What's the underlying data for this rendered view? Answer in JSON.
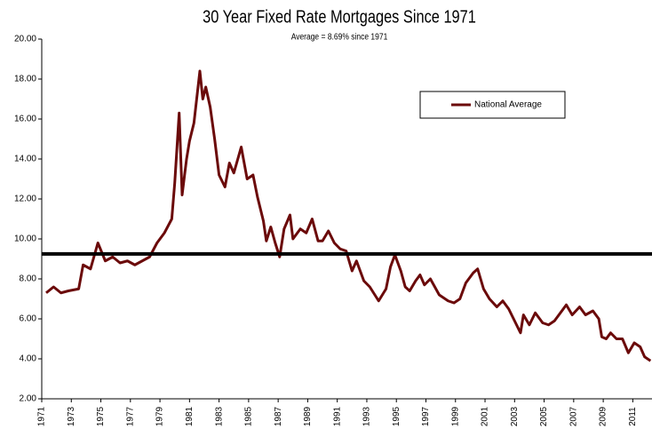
{
  "chart_data": {
    "type": "line",
    "title": "30 Year Fixed Rate Mortgages Since 1971",
    "subtitle": "Average = 8.69% since 1971",
    "x": [
      1971.3,
      1971.8,
      1972.3,
      1972.8,
      1973.5,
      1973.8,
      1974.3,
      1974.8,
      1975.3,
      1975.8,
      1976.3,
      1976.8,
      1977.3,
      1977.8,
      1978.3,
      1978.8,
      1979.3,
      1979.8,
      1980.0,
      1980.3,
      1980.5,
      1980.8,
      1981.0,
      1981.3,
      1981.7,
      1981.9,
      1982.1,
      1982.4,
      1982.7,
      1983.0,
      1983.4,
      1983.7,
      1984.0,
      1984.5,
      1984.9,
      1985.3,
      1985.6,
      1986.0,
      1986.2,
      1986.5,
      1986.8,
      1987.1,
      1987.4,
      1987.8,
      1988.0,
      1988.5,
      1988.9,
      1989.3,
      1989.7,
      1990.0,
      1990.4,
      1990.8,
      1991.2,
      1991.6,
      1992.0,
      1992.3,
      1992.8,
      1993.2,
      1993.8,
      1994.3,
      1994.6,
      1994.9,
      1995.3,
      1995.6,
      1995.9,
      1996.3,
      1996.6,
      1996.9,
      1997.3,
      1997.9,
      1998.5,
      1998.9,
      1999.3,
      1999.7,
      2000.2,
      2000.5,
      2000.9,
      2001.3,
      2001.8,
      2002.2,
      2002.6,
      2003.0,
      2003.4,
      2003.6,
      2004.0,
      2004.4,
      2004.9,
      2005.3,
      2005.7,
      2006.0,
      2006.5,
      2006.9,
      2007.4,
      2007.8,
      2008.3,
      2008.7,
      2008.9,
      2009.2,
      2009.5,
      2009.9,
      2010.3,
      2010.7,
      2011.1,
      2011.5,
      2011.8,
      2012.2
    ],
    "series": [
      {
        "name": "National Average",
        "color": "#6b0a0a",
        "values": [
          7.3,
          7.6,
          7.3,
          7.4,
          7.5,
          8.7,
          8.5,
          9.8,
          8.9,
          9.1,
          8.8,
          8.9,
          8.7,
          8.9,
          9.1,
          9.8,
          10.3,
          11.0,
          12.8,
          16.3,
          12.2,
          14.0,
          14.9,
          15.8,
          18.4,
          17.0,
          17.6,
          16.6,
          15.0,
          13.2,
          12.6,
          13.8,
          13.3,
          14.6,
          13.0,
          13.2,
          12.1,
          10.9,
          9.9,
          10.6,
          9.8,
          9.1,
          10.5,
          11.2,
          10.0,
          10.5,
          10.3,
          11.0,
          9.9,
          9.9,
          10.4,
          9.8,
          9.5,
          9.4,
          8.4,
          8.9,
          7.9,
          7.6,
          6.9,
          7.5,
          8.6,
          9.2,
          8.4,
          7.6,
          7.4,
          7.9,
          8.2,
          7.7,
          8.0,
          7.2,
          6.9,
          6.8,
          7.0,
          7.8,
          8.3,
          8.5,
          7.5,
          7.0,
          6.6,
          6.9,
          6.5,
          5.9,
          5.3,
          6.2,
          5.7,
          6.3,
          5.8,
          5.7,
          5.9,
          6.2,
          6.7,
          6.2,
          6.6,
          6.2,
          6.4,
          6.0,
          5.1,
          5.0,
          5.3,
          5.0,
          5.0,
          4.3,
          4.8,
          4.6,
          4.1,
          3.9
        ]
      }
    ],
    "reference_line": 9.25,
    "xlim": [
      1971,
      2012.3
    ],
    "xticks": [
      1971,
      1973,
      1975,
      1977,
      1979,
      1981,
      1983,
      1985,
      1987,
      1989,
      1991,
      1993,
      1995,
      1997,
      1999,
      2001,
      2003,
      2005,
      2007,
      2009,
      2011
    ],
    "ylim": [
      2,
      20
    ],
    "yticks": [
      {
        "value": 2,
        "label": "2.00"
      },
      {
        "value": 4,
        "label": "4.00"
      },
      {
        "value": 6,
        "label": "6.00"
      },
      {
        "value": 8,
        "label": "8.00"
      },
      {
        "value": 10,
        "label": "10.00"
      },
      {
        "value": 12,
        "label": "12.00"
      },
      {
        "value": 14,
        "label": "14.00"
      },
      {
        "value": 16,
        "label": "16.00"
      },
      {
        "value": 18,
        "label": "18.00"
      },
      {
        "value": 20,
        "label": "20.00"
      }
    ],
    "legend": "top-right",
    "grid": false
  }
}
